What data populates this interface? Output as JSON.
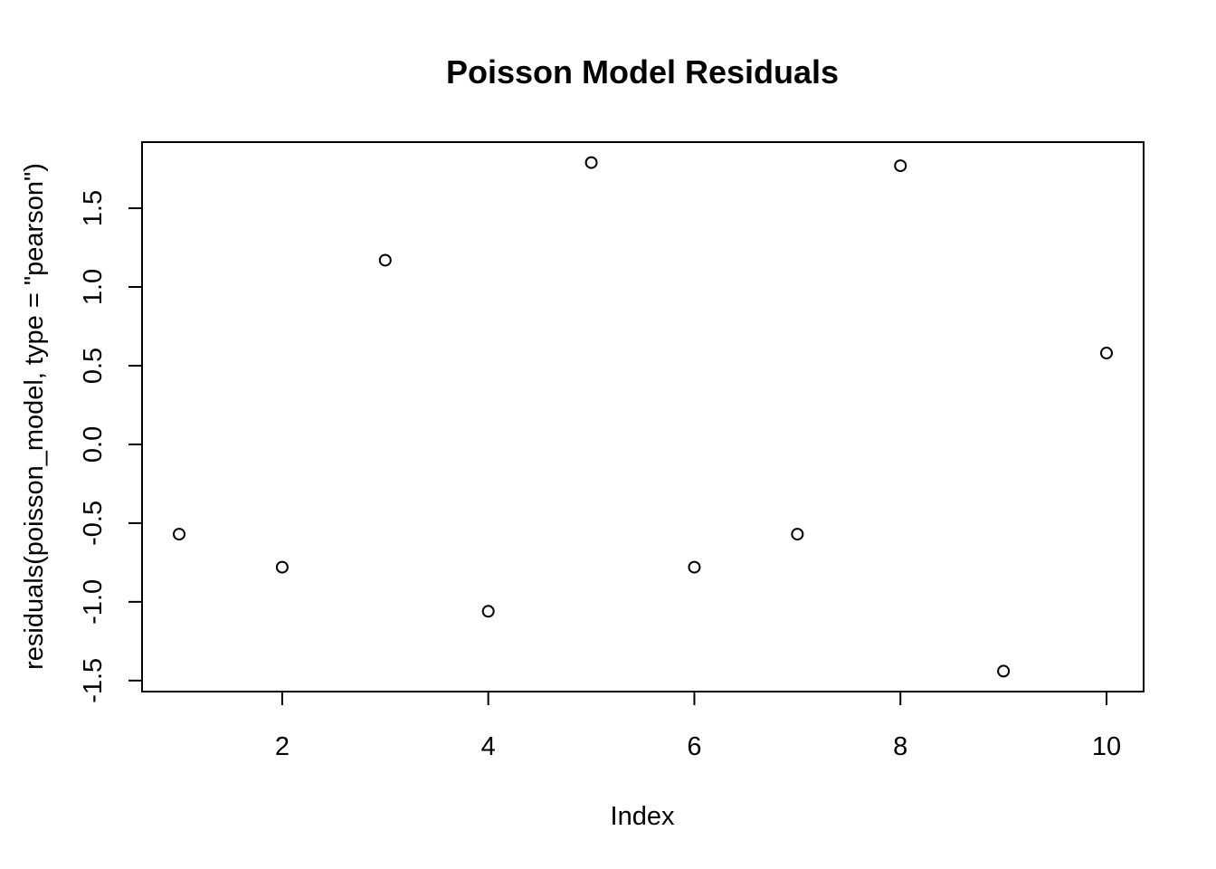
{
  "chart_data": {
    "type": "scatter",
    "title": "Poisson Model Residuals",
    "xlabel": "Index",
    "ylabel": "residuals(poisson_model, type = \"pearson\")",
    "x": [
      1,
      2,
      3,
      4,
      5,
      6,
      7,
      8,
      9,
      10
    ],
    "y": [
      -0.57,
      -0.78,
      1.17,
      -1.06,
      1.79,
      -0.78,
      -0.57,
      1.77,
      -1.44,
      0.58
    ],
    "xlim": [
      0.64,
      10.36
    ],
    "ylim": [
      -1.57,
      1.92
    ],
    "xticks": [
      2,
      4,
      6,
      8,
      10
    ],
    "yticks": [
      -1.5,
      -1.0,
      -0.5,
      0.0,
      0.5,
      1.0,
      1.5
    ],
    "xtick_labels": [
      "2",
      "4",
      "6",
      "8",
      "10"
    ],
    "ytick_labels": [
      "-1.5",
      "-1.0",
      "-0.5",
      "0.0",
      "0.5",
      "1.0",
      "1.5"
    ],
    "marker": "open-circle",
    "grid": false,
    "legend": "none"
  }
}
